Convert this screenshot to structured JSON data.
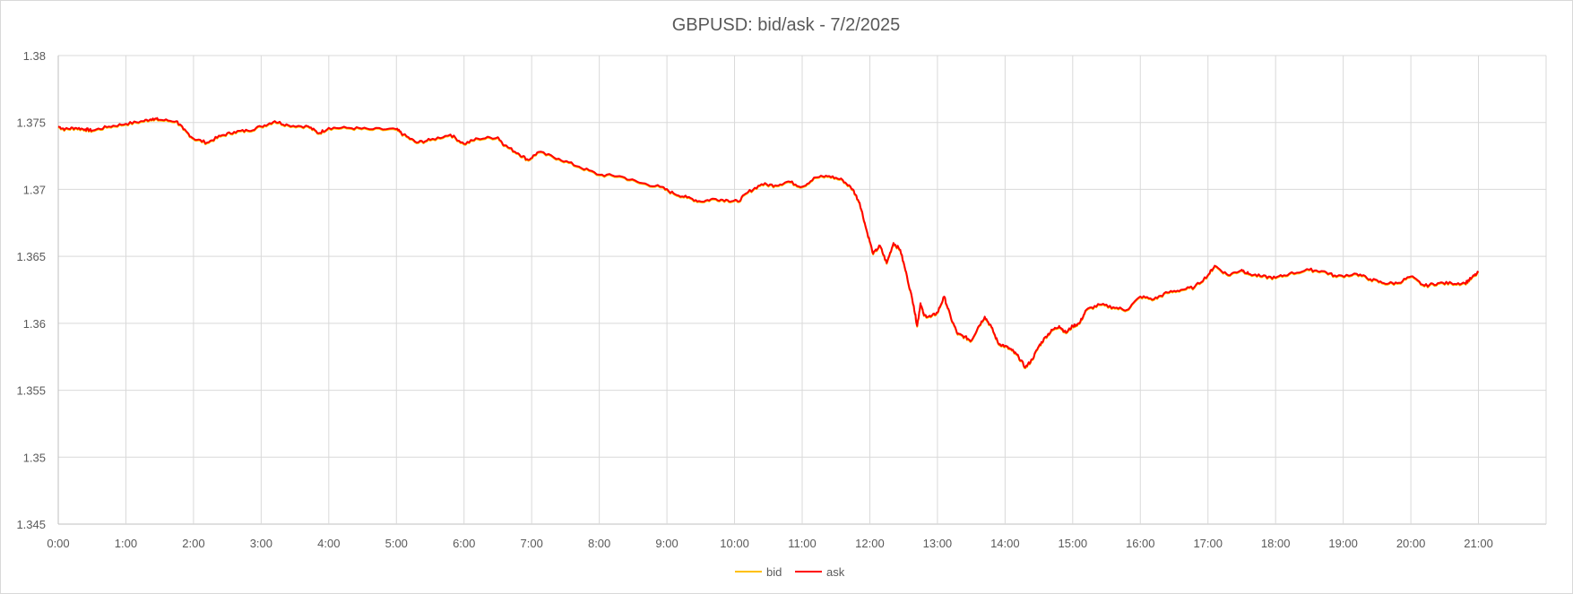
{
  "chart_data": {
    "type": "line",
    "title": "GBPUSD: bid/ask - 7/2/2025",
    "xlabel": "",
    "ylabel": "",
    "x_ticks": [
      "0:00",
      "1:00",
      "2:00",
      "3:00",
      "4:00",
      "5:00",
      "6:00",
      "7:00",
      "8:00",
      "9:00",
      "10:00",
      "11:00",
      "12:00",
      "13:00",
      "14:00",
      "15:00",
      "16:00",
      "17:00",
      "18:00",
      "19:00",
      "20:00",
      "21:00"
    ],
    "y_ticks": [
      "1.345",
      "1.35",
      "1.355",
      "1.36",
      "1.365",
      "1.37",
      "1.375",
      "1.38"
    ],
    "ylim": [
      1.345,
      1.38
    ],
    "xlim_hours": [
      0,
      22
    ],
    "grid": true,
    "legend_position": "bottom",
    "series": [
      {
        "name": "bid",
        "color": "#ffc000",
        "offset": -6e-05
      },
      {
        "name": "ask",
        "color": "#ff0000",
        "offset": 0
      }
    ],
    "x_hours": [
      0,
      0.1,
      0.25,
      0.4,
      0.5,
      0.75,
      1,
      1.25,
      1.4,
      1.5,
      1.75,
      1.85,
      2,
      2.2,
      2.4,
      2.6,
      2.8,
      3,
      3.2,
      3.4,
      3.7,
      3.85,
      4,
      4.3,
      4.6,
      5,
      5.1,
      5.3,
      5.5,
      5.8,
      6,
      6.2,
      6.5,
      6.6,
      6.8,
      6.95,
      7.1,
      7.4,
      7.7,
      8,
      8.3,
      8.6,
      8.9,
      9.1,
      9.3,
      9.5,
      9.7,
      9.9,
      10.05,
      10.2,
      10.4,
      10.6,
      10.8,
      11,
      11.2,
      11.4,
      11.6,
      11.75,
      11.85,
      11.95,
      12.05,
      12.15,
      12.25,
      12.35,
      12.45,
      12.55,
      12.65,
      12.7,
      12.75,
      12.8,
      12.9,
      13.0,
      13.1,
      13.2,
      13.3,
      13.4,
      13.5,
      13.6,
      13.7,
      13.8,
      13.9,
      14.0,
      14.1,
      14.2,
      14.3,
      14.4,
      14.5,
      14.6,
      14.7,
      14.8,
      14.9,
      15.0,
      15.1,
      15.2,
      15.4,
      15.6,
      15.8,
      16.0,
      16.2,
      16.4,
      16.6,
      16.8,
      17.0,
      17.1,
      17.3,
      17.5,
      17.6,
      17.8,
      18.0,
      18.2,
      18.5,
      18.7,
      18.9,
      19.2,
      19.4,
      19.6,
      19.8,
      20.0,
      20.2,
      20.4,
      20.6,
      20.8,
      20.9,
      21.0
    ],
    "ask_values": [
      1.3747,
      1.3745,
      1.3746,
      1.3745,
      1.3744,
      1.3747,
      1.3749,
      1.3751,
      1.3753,
      1.3752,
      1.3751,
      1.3745,
      1.3738,
      1.3735,
      1.374,
      1.3743,
      1.3744,
      1.3747,
      1.3751,
      1.3748,
      1.3747,
      1.3742,
      1.3746,
      1.3746,
      1.3745,
      1.3745,
      1.3741,
      1.3735,
      1.3737,
      1.3741,
      1.3734,
      1.3738,
      1.3739,
      1.3733,
      1.3727,
      1.3722,
      1.3728,
      1.3723,
      1.3717,
      1.3711,
      1.371,
      1.3705,
      1.3702,
      1.3697,
      1.3694,
      1.3691,
      1.3693,
      1.3692,
      1.3691,
      1.3698,
      1.3704,
      1.3703,
      1.3706,
      1.3702,
      1.3709,
      1.371,
      1.3707,
      1.37,
      1.369,
      1.367,
      1.3652,
      1.3658,
      1.3645,
      1.366,
      1.3655,
      1.3635,
      1.3613,
      1.3598,
      1.3615,
      1.3606,
      1.3605,
      1.3608,
      1.362,
      1.3604,
      1.3592,
      1.359,
      1.3587,
      1.3597,
      1.3605,
      1.3597,
      1.3585,
      1.3583,
      1.358,
      1.3575,
      1.3567,
      1.3573,
      1.3583,
      1.359,
      1.3595,
      1.3598,
      1.3593,
      1.3598,
      1.36,
      1.361,
      1.3614,
      1.3612,
      1.361,
      1.362,
      1.3618,
      1.3623,
      1.3625,
      1.3627,
      1.3636,
      1.3643,
      1.3636,
      1.364,
      1.3637,
      1.3635,
      1.3634,
      1.3637,
      1.364,
      1.3639,
      1.3635,
      1.3637,
      1.3633,
      1.363,
      1.363,
      1.3635,
      1.3628,
      1.363,
      1.363,
      1.363,
      1.3634,
      1.3638
    ]
  },
  "legend": {
    "bid_label": "bid",
    "ask_label": "ask"
  }
}
